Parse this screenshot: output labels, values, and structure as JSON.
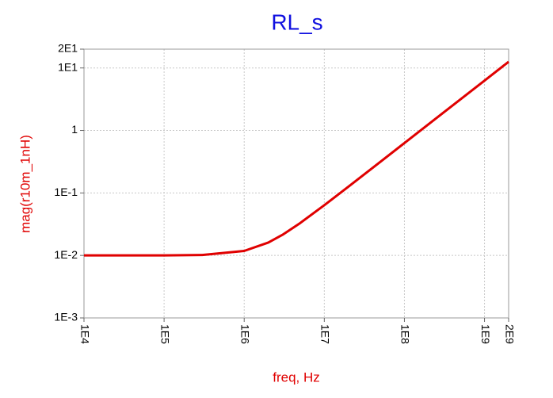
{
  "chart_data": {
    "type": "line",
    "title": "RL_s",
    "x_label": "freq, Hz",
    "y_label": "mag(r10m_1nH)",
    "x_log": true,
    "y_log": true,
    "grid": true,
    "xlim": [
      10000,
      2000000000
    ],
    "ylim": [
      0.001,
      20
    ],
    "xticks": [
      {
        "value": 10000,
        "label": "1E4"
      },
      {
        "value": 100000,
        "label": "1E5"
      },
      {
        "value": 1000000,
        "label": "1E6"
      },
      {
        "value": 10000000,
        "label": "1E7"
      },
      {
        "value": 100000000,
        "label": "1E8"
      },
      {
        "value": 1000000000,
        "label": "1E9"
      },
      {
        "value": 2000000000,
        "label": "2E9"
      }
    ],
    "yticks": [
      {
        "value": 0.001,
        "label": "1E-3"
      },
      {
        "value": 0.01,
        "label": "1E-2"
      },
      {
        "value": 0.1,
        "label": "1E-1"
      },
      1,
      {
        "value": 10,
        "label": "1E1"
      },
      {
        "value": 20,
        "label": "2E1"
      }
    ],
    "x": [
      10000,
      30000,
      100000,
      300000,
      1000000,
      2000000,
      3000000,
      5000000,
      10000000,
      20000000,
      50000000,
      100000000,
      300000000,
      1000000000,
      2000000000
    ],
    "series": [
      {
        "name": "mag(r10m_1nH)",
        "color": "#e00000",
        "values": [
          0.01,
          0.01,
          0.01002,
          0.010176,
          0.01181,
          0.01606,
          0.02134,
          0.03297,
          0.06362,
          0.12606,
          0.31432,
          0.6284,
          1.885,
          6.2832,
          12.566
        ]
      }
    ]
  }
}
